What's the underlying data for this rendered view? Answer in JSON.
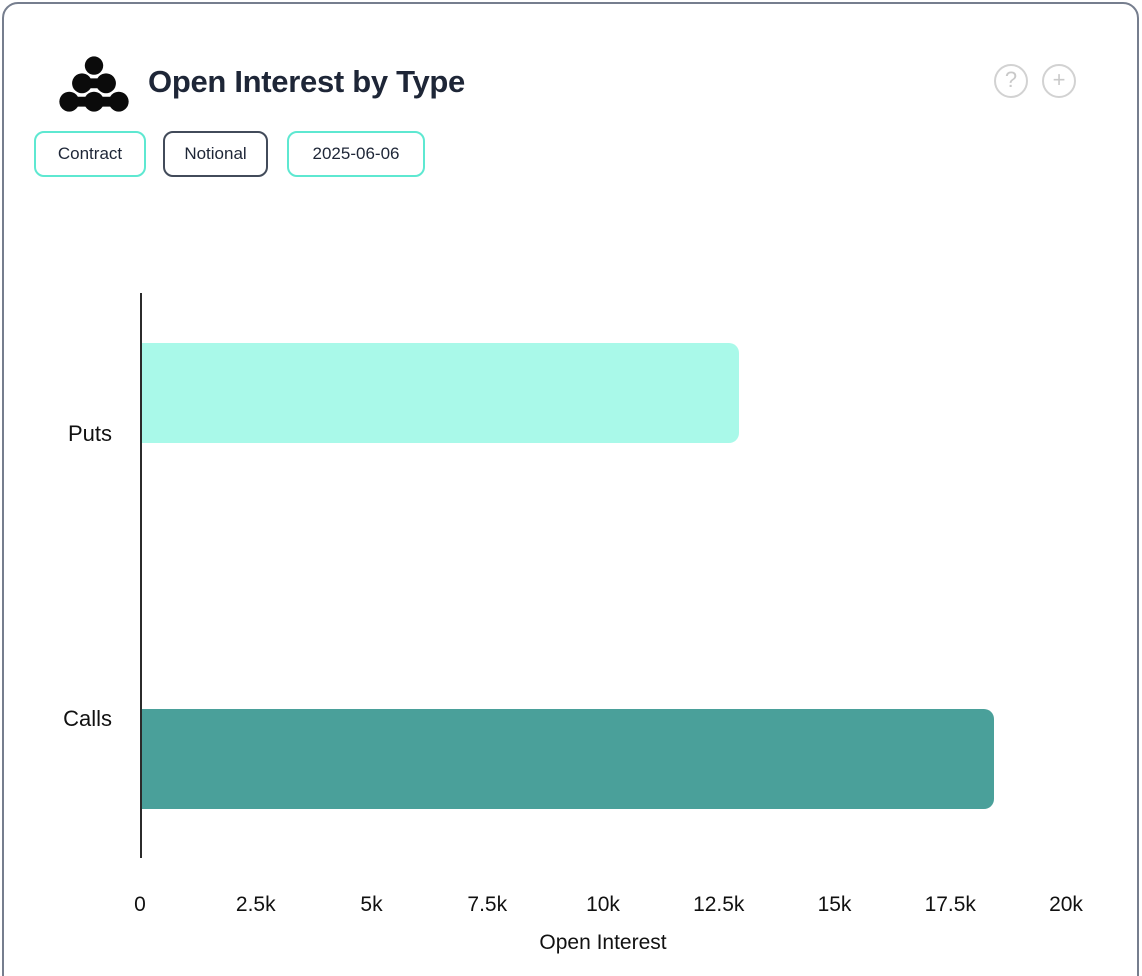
{
  "header": {
    "title": "Open Interest by Type",
    "help_glyph": "?",
    "add_glyph": "+"
  },
  "filters": [
    {
      "label": "Contract",
      "style": "teal"
    },
    {
      "label": "Notional",
      "style": "dark"
    },
    {
      "label": "2025-06-06",
      "style": "teal"
    }
  ],
  "colors": {
    "card_border": "#767E8E",
    "text_dark": "#1E2637",
    "accent_teal": "#5EE8D1",
    "chip_dark_border": "#424B5A",
    "icon_gray": "#D2D2D2",
    "axis_color": "#2B2B2B",
    "puts_bar": "#A9F9E9",
    "calls_bar": "#4AA09A"
  },
  "chart_data": {
    "type": "bar",
    "orientation": "horizontal",
    "title": "Open Interest by Type",
    "categories": [
      "Puts",
      "Calls"
    ],
    "values": [
      12900,
      18400
    ],
    "bar_colors": [
      "#A9F9E9",
      "#4AA09A"
    ],
    "xlabel": "Open Interest",
    "ylabel": "",
    "xlim": [
      0,
      20000
    ],
    "grid": false,
    "legend": "none",
    "xticks": [
      {
        "value": 0,
        "label": "0"
      },
      {
        "value": 2500,
        "label": "2.5k"
      },
      {
        "value": 5000,
        "label": "5k"
      },
      {
        "value": 7500,
        "label": "7.5k"
      },
      {
        "value": 10000,
        "label": "10k"
      },
      {
        "value": 12500,
        "label": "12.5k"
      },
      {
        "value": 15000,
        "label": "15k"
      },
      {
        "value": 17500,
        "label": "17.5k"
      },
      {
        "value": 20000,
        "label": "20k"
      }
    ]
  }
}
